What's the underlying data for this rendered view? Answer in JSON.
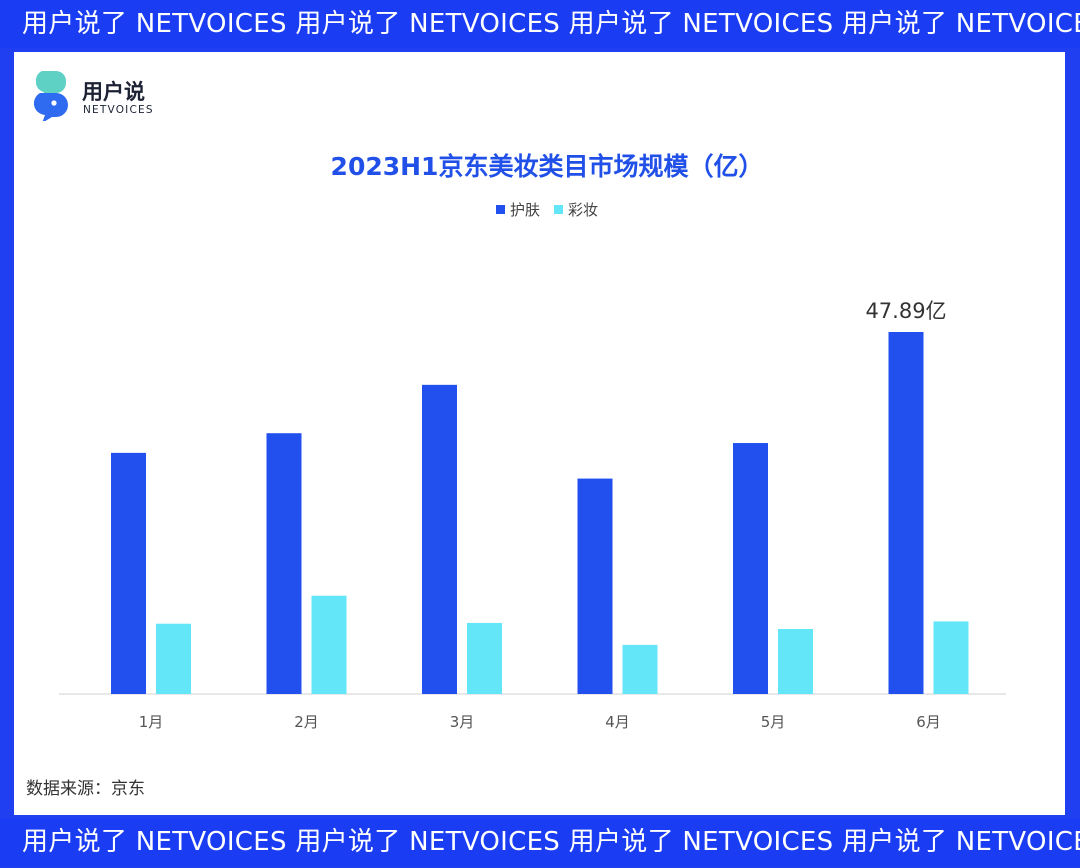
{
  "banner": {
    "text": "用户说了  NETVOICES  用户说了  NETVOICES  用户说了  NETVOICES  用户说了  NETVOICES  用户说了  NETVOICES"
  },
  "logo": {
    "cn": "用户说",
    "en": "NETVOICES"
  },
  "colors": {
    "skincare": "#2250ef",
    "makeup": "#63e6f8",
    "banner": "#1a3cf2",
    "title": "#2150e8"
  },
  "source": "数据来源：京东",
  "chart_data": {
    "type": "bar",
    "title": "2023H1京东美妆类目市场规模（亿）",
    "categories": [
      "1月",
      "2月",
      "3月",
      "4月",
      "5月",
      "6月"
    ],
    "series": [
      {
        "name": "护肤",
        "values": [
          31.9,
          34.5,
          40.9,
          28.5,
          33.2,
          47.89
        ]
      },
      {
        "name": "彩妆",
        "values": [
          9.3,
          13.0,
          9.4,
          6.5,
          8.6,
          9.6
        ]
      }
    ],
    "annotations": [
      {
        "series": 0,
        "index": 5,
        "text": "47.89亿"
      }
    ],
    "legend": "top-center",
    "grid": false,
    "ylim": [
      0,
      50
    ]
  }
}
